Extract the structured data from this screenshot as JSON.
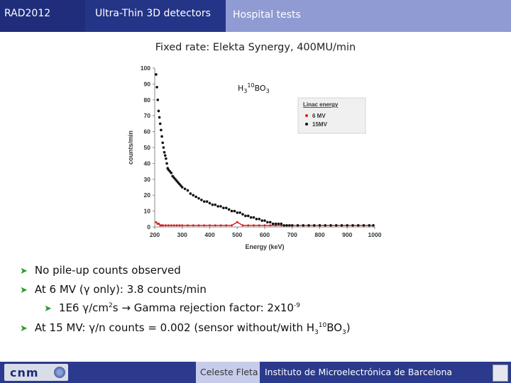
{
  "header": {
    "tab1": "RAD2012",
    "tab2": "Ultra-Thin 3D detectors",
    "tab3": "Hospital tests"
  },
  "subtitle": "Fixed rate: Elekta Synergy, 400MU/min",
  "chart_data": {
    "type": "scatter",
    "xlabel": "Energy (keV)",
    "ylabel": "counts/min",
    "xlim": [
      200,
      1000
    ],
    "ylim": [
      0,
      100
    ],
    "xticks": [
      200,
      300,
      400,
      500,
      600,
      700,
      800,
      900,
      1000
    ],
    "yticks": [
      0,
      10,
      20,
      30,
      40,
      50,
      60,
      70,
      80,
      90,
      100
    ],
    "grid": false,
    "annotation": {
      "base": "H",
      "sub1": "3",
      "sup": "10",
      "mid": "BO",
      "sub2": "3"
    },
    "legend": {
      "title": "Linac energy",
      "position": "top-right"
    },
    "series": [
      {
        "name": "6 MV",
        "color": "#e02020",
        "x": [
          205,
          210,
          215,
          220,
          225,
          230,
          240,
          250,
          260,
          270,
          280,
          290,
          300,
          320,
          340,
          360,
          380,
          400,
          420,
          440,
          460,
          480,
          500,
          520,
          540,
          560,
          580,
          600,
          620,
          640,
          660,
          680,
          700,
          720,
          740,
          760,
          780,
          800,
          820,
          840,
          860,
          880,
          900,
          920,
          940,
          960,
          980,
          995
        ],
        "y": [
          3,
          2,
          2,
          1,
          1,
          1,
          1,
          1,
          1,
          1,
          1,
          1,
          1,
          1,
          1,
          1,
          1,
          1,
          1,
          1,
          1,
          1,
          3,
          1,
          1,
          1,
          1,
          1,
          1,
          1,
          1,
          1,
          1,
          1,
          1,
          1,
          1,
          1,
          1,
          1,
          1,
          1,
          1,
          1,
          1,
          1,
          1,
          1
        ]
      },
      {
        "name": "15MV",
        "color": "#111111",
        "x": [
          205,
          208,
          211,
          214,
          217,
          220,
          223,
          226,
          229,
          232,
          235,
          238,
          241,
          244,
          247,
          250,
          255,
          260,
          265,
          270,
          275,
          280,
          285,
          290,
          295,
          300,
          310,
          320,
          330,
          340,
          350,
          360,
          370,
          380,
          390,
          400,
          410,
          420,
          430,
          440,
          450,
          460,
          470,
          480,
          490,
          500,
          510,
          520,
          530,
          540,
          550,
          560,
          570,
          580,
          590,
          600,
          610,
          620,
          630,
          640,
          650,
          660,
          670,
          680,
          690,
          700,
          720,
          740,
          760,
          780,
          800,
          820,
          840,
          860,
          880,
          900,
          920,
          940,
          960,
          980,
          995
        ],
        "y": [
          96,
          88,
          80,
          73,
          69,
          65,
          61,
          57,
          53,
          50,
          47,
          45,
          43,
          40,
          37,
          36,
          35,
          34,
          32,
          31,
          30,
          29,
          28,
          27,
          26,
          25,
          24,
          23,
          21,
          20,
          19,
          18,
          17,
          16,
          16,
          15,
          14,
          14,
          13,
          13,
          12,
          12,
          11,
          10,
          10,
          9,
          9,
          8,
          7,
          7,
          6,
          6,
          5,
          5,
          4,
          4,
          3,
          3,
          2,
          2,
          2,
          2,
          1,
          1,
          1,
          1,
          1,
          1,
          1,
          1,
          1,
          1,
          1,
          1,
          1,
          1,
          1,
          1,
          1,
          1,
          1
        ]
      }
    ]
  },
  "bullets": {
    "b1": "No pile-up counts observed",
    "b2": "At 6 MV (γ only): 3.8 counts/min",
    "b3": {
      "a": "1E6 γ/cm",
      "a_sup": "2",
      "b": "s",
      "mid": " Gamma rejection factor: 2x10",
      "exp": "-9"
    },
    "b4": {
      "a": "At 15 MV: γ/n counts = 0.002 (sensor without/with H",
      "s1": "3",
      "sup": "10",
      "c": "BO",
      "s2": "3",
      "d": ")"
    }
  },
  "footer": {
    "logo_text": "cnm",
    "author": "Celeste Fleta",
    "institute": "Instituto de Microelectrónica de Barcelona"
  }
}
